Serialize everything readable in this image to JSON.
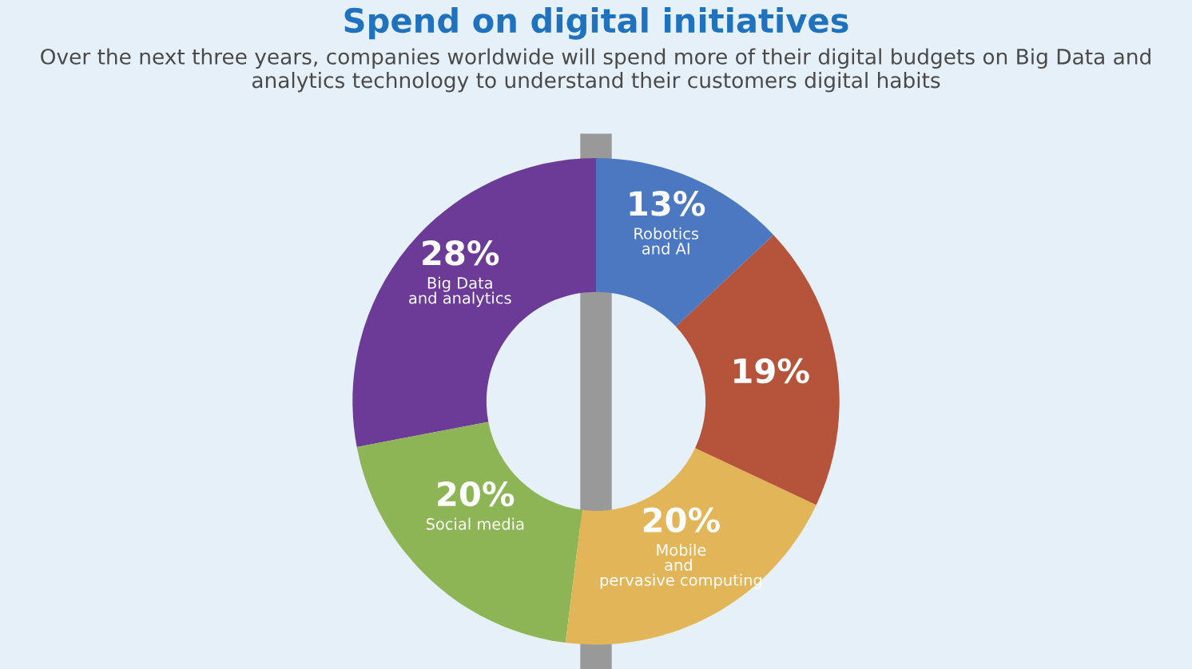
{
  "chart_data": {
    "type": "donut",
    "title": "Spend on digital initiatives",
    "subtitle": "Over the next three years, companies worldwide will spend more of their digital budgets on Big Data and analytics technology to understand their customers digital habits",
    "categories": [
      "Big Data and analytics",
      "Social media",
      "Mobile and pervasive computing",
      null,
      "Robotics and AI"
    ],
    "values": [
      28,
      20,
      20,
      19,
      13
    ],
    "value_labels": [
      "28%",
      "20%",
      "20%",
      "19%",
      "13%"
    ],
    "colors": [
      "#6b3b97",
      "#8db556",
      "#e2b658",
      "#b6533b",
      "#4b78c1"
    ],
    "legend": false
  }
}
